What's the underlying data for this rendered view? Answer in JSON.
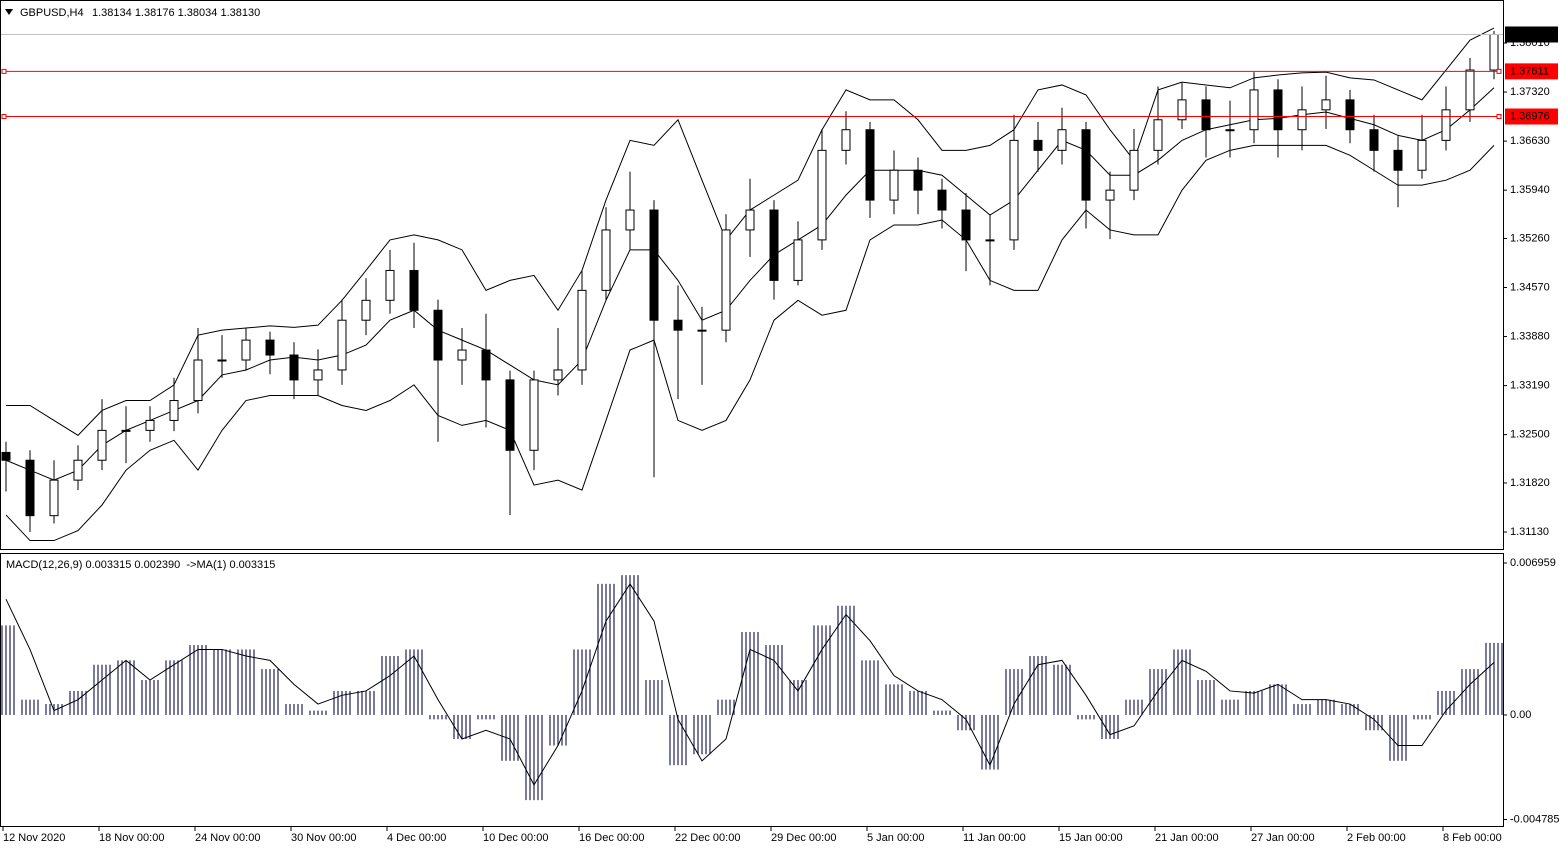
{
  "chart_data": [
    {
      "type": "candlestick",
      "title": "GBPUSD,H4",
      "subtitle": "1.38134 1.38176 1.38034 1.38130",
      "open": [
        1.3225,
        1.3214,
        1.3136,
        1.3186,
        1.3214,
        1.3256,
        1.3256,
        1.327,
        1.3298,
        1.3355,
        1.3355,
        1.3383,
        1.3362,
        1.3327,
        1.3341,
        1.3411,
        1.3439,
        1.3481,
        1.3425,
        1.3355,
        1.3369,
        1.3327,
        1.3228,
        1.3327,
        1.3341,
        1.3453,
        1.3538,
        1.3566,
        1.3411,
        1.3397,
        1.3397,
        1.3538,
        1.3566,
        1.3467,
        1.3524,
        1.365,
        1.3679,
        1.358,
        1.3622,
        1.3594,
        1.3566,
        1.3524,
        1.3524,
        1.3664,
        1.365,
        1.3679,
        1.358,
        1.3594,
        1.365,
        1.3693,
        1.3721,
        1.3679,
        1.3679,
        1.3735,
        1.3679,
        1.3707,
        1.3721,
        1.3679,
        1.365,
        1.3622,
        1.3664,
        1.3707,
        1.3763
      ],
      "high": [
        1.324,
        1.3228,
        1.3214,
        1.3235,
        1.33,
        1.329,
        1.329,
        1.333,
        1.34,
        1.339,
        1.34,
        1.3395,
        1.338,
        1.337,
        1.344,
        1.347,
        1.351,
        1.352,
        1.344,
        1.34,
        1.342,
        1.334,
        1.334,
        1.34,
        1.348,
        1.357,
        1.362,
        1.358,
        1.346,
        1.343,
        1.356,
        1.361,
        1.358,
        1.355,
        1.368,
        1.3705,
        1.369,
        1.365,
        1.364,
        1.361,
        1.359,
        1.356,
        1.37,
        1.369,
        1.371,
        1.369,
        1.362,
        1.368,
        1.374,
        1.3745,
        1.374,
        1.372,
        1.376,
        1.375,
        1.374,
        1.3755,
        1.3735,
        1.37,
        1.367,
        1.37,
        1.374,
        1.378,
        1.3818
      ],
      "low": [
        1.317,
        1.3113,
        1.3125,
        1.3172,
        1.32,
        1.321,
        1.324,
        1.3255,
        1.328,
        1.333,
        1.334,
        1.3335,
        1.33,
        1.3305,
        1.332,
        1.339,
        1.342,
        1.34,
        1.324,
        1.332,
        1.326,
        1.3137,
        1.32,
        1.3305,
        1.332,
        1.344,
        1.351,
        1.319,
        1.33,
        1.332,
        1.338,
        1.35,
        1.344,
        1.346,
        1.351,
        1.363,
        1.3555,
        1.356,
        1.356,
        1.354,
        1.348,
        1.346,
        1.351,
        1.362,
        1.363,
        1.354,
        1.3525,
        1.358,
        1.363,
        1.368,
        1.364,
        1.364,
        1.366,
        1.364,
        1.365,
        1.368,
        1.366,
        1.362,
        1.357,
        1.361,
        1.365,
        1.369,
        1.375
      ],
      "close": [
        1.3214,
        1.3136,
        1.3186,
        1.3214,
        1.3256,
        1.3256,
        1.327,
        1.3298,
        1.3355,
        1.3355,
        1.3383,
        1.3362,
        1.3327,
        1.3341,
        1.3411,
        1.3439,
        1.3481,
        1.3425,
        1.3355,
        1.3369,
        1.3327,
        1.3228,
        1.3327,
        1.3341,
        1.3453,
        1.3538,
        1.3566,
        1.3411,
        1.3397,
        1.3397,
        1.3538,
        1.3566,
        1.3467,
        1.3524,
        1.365,
        1.3679,
        1.358,
        1.3622,
        1.3594,
        1.3566,
        1.3524,
        1.3524,
        1.3664,
        1.365,
        1.3679,
        1.358,
        1.3594,
        1.365,
        1.3693,
        1.3721,
        1.3679,
        1.3679,
        1.3735,
        1.3679,
        1.3707,
        1.3721,
        1.3679,
        1.365,
        1.3622,
        1.3664,
        1.3707,
        1.3763,
        1.3813
      ],
      "upper": [
        1.3291,
        1.3291,
        1.327,
        1.3249,
        1.3284,
        1.3298,
        1.3298,
        1.332,
        1.339,
        1.3397,
        1.34,
        1.3403,
        1.3401,
        1.3404,
        1.3439,
        1.3481,
        1.3524,
        1.3531,
        1.3524,
        1.351,
        1.3453,
        1.3467,
        1.3474,
        1.3425,
        1.3481,
        1.358,
        1.3664,
        1.3657,
        1.3693,
        1.3608,
        1.3524,
        1.3566,
        1.3587,
        1.3608,
        1.3679,
        1.3735,
        1.3721,
        1.3721,
        1.3693,
        1.365,
        1.365,
        1.3657,
        1.3679,
        1.3735,
        1.3742,
        1.3728,
        1.3679,
        1.3636,
        1.3735,
        1.3746,
        1.3742,
        1.3738,
        1.3752,
        1.3756,
        1.3759,
        1.376,
        1.3752,
        1.3749,
        1.3735,
        1.3721,
        1.3763,
        1.3805,
        1.3822
      ],
      "middle": [
        1.3214,
        1.32,
        1.3186,
        1.32,
        1.3235,
        1.3256,
        1.327,
        1.3284,
        1.3298,
        1.3334,
        1.3341,
        1.3355,
        1.3359,
        1.3355,
        1.3362,
        1.3376,
        1.3411,
        1.3425,
        1.3397,
        1.3383,
        1.3369,
        1.3348,
        1.3327,
        1.332,
        1.3355,
        1.3439,
        1.351,
        1.351,
        1.3467,
        1.3411,
        1.3425,
        1.3467,
        1.3503,
        1.3524,
        1.3545,
        1.3587,
        1.3622,
        1.3622,
        1.3622,
        1.3615,
        1.3587,
        1.3559,
        1.358,
        1.3622,
        1.3664,
        1.365,
        1.3615,
        1.3615,
        1.3636,
        1.3664,
        1.3679,
        1.3686,
        1.3693,
        1.3695,
        1.37,
        1.3704,
        1.3695,
        1.3686,
        1.3671,
        1.3664,
        1.3679,
        1.3707,
        1.3738
      ],
      "lower": [
        1.3137,
        1.3101,
        1.3101,
        1.3115,
        1.3151,
        1.32,
        1.3228,
        1.3242,
        1.32,
        1.3256,
        1.3298,
        1.3305,
        1.3305,
        1.3305,
        1.3291,
        1.3284,
        1.3298,
        1.332,
        1.3277,
        1.3263,
        1.327,
        1.3256,
        1.3179,
        1.3186,
        1.3172,
        1.327,
        1.3369,
        1.3383,
        1.327,
        1.3256,
        1.327,
        1.3327,
        1.3411,
        1.3439,
        1.3418,
        1.3425,
        1.3524,
        1.3545,
        1.3545,
        1.3552,
        1.3524,
        1.3467,
        1.3453,
        1.3453,
        1.3524,
        1.3566,
        1.3538,
        1.3531,
        1.3531,
        1.3594,
        1.3636,
        1.365,
        1.3657,
        1.3657,
        1.3657,
        1.3657,
        1.3643,
        1.3622,
        1.3601,
        1.3601,
        1.3608,
        1.3622,
        1.3657
      ],
      "up_color": "#ffffff",
      "down_color": "#000000",
      "band_color": "#000000",
      "ylim": [
        1.30891,
        1.38573
      ],
      "yticks": [
        {
          "value": 1.3801,
          "label": "1.38010"
        },
        {
          "value": 1.3732,
          "label": "1.37320"
        },
        {
          "value": 1.3663,
          "label": "1.36630"
        },
        {
          "value": 1.3594,
          "label": "1.35940"
        },
        {
          "value": 1.3526,
          "label": "1.35260"
        },
        {
          "value": 1.3457,
          "label": "1.34570"
        },
        {
          "value": 1.3388,
          "label": "1.33880"
        },
        {
          "value": 1.3319,
          "label": "1.33190"
        },
        {
          "value": 1.325,
          "label": "1.32500"
        },
        {
          "value": 1.3182,
          "label": "1.31820"
        },
        {
          "value": 1.3113,
          "label": "1.31130"
        }
      ],
      "hlines": [
        {
          "value": 1.37611,
          "label": "1.37611",
          "color": "#ff0000"
        },
        {
          "value": 1.36976,
          "label": "1.36976",
          "color": "#ff0000"
        }
      ],
      "last_price": {
        "value": 1.3813,
        "label": "1.38130"
      }
    },
    {
      "type": "macd",
      "title": "MACD(12,26,9) 0.003315 0.002390  ->MA(1) 0.003315",
      "values": [
        0.0041,
        0.0007,
        0.0005,
        0.0011,
        0.0023,
        0.0025,
        0.0016,
        0.0025,
        0.0032,
        0.003,
        0.003,
        0.0021,
        0.0005,
        0.0002,
        0.0011,
        0.0011,
        0.0027,
        0.003,
        -0.0002,
        -0.0011,
        -0.0002,
        -0.0021,
        -0.0039,
        -0.0014,
        0.003,
        0.006,
        0.0064,
        0.0016,
        -0.0023,
        -0.0018,
        0.0007,
        0.0038,
        0.0032,
        0.0016,
        0.0041,
        0.005,
        0.0025,
        0.0014,
        0.0011,
        0.0002,
        -0.0007,
        -0.0025,
        0.0021,
        0.0027,
        0.0023,
        -0.0002,
        -0.0011,
        0.0007,
        0.0021,
        0.003,
        0.0016,
        0.0007,
        0.0011,
        0.0014,
        0.0005,
        0.0007,
        0.0005,
        -0.0007,
        -0.0021,
        -0.0002,
        0.0011,
        0.0021,
        0.0033
      ],
      "signal": [
        0.0053,
        0.003,
        0.0002,
        0.0007,
        0.0016,
        0.0025,
        0.0016,
        0.0023,
        0.003,
        0.003,
        0.0027,
        0.0025,
        0.0014,
        0.0005,
        0.0009,
        0.0011,
        0.0018,
        0.0027,
        0.0007,
        -0.0011,
        -0.0007,
        -0.0011,
        -0.0032,
        -0.0014,
        0.0011,
        0.0043,
        0.006,
        0.0043,
        -0.0002,
        -0.0021,
        -0.0011,
        0.003,
        0.0025,
        0.0011,
        0.003,
        0.0046,
        0.0034,
        0.0018,
        0.0011,
        0.0007,
        -0.0002,
        -0.0023,
        0.0005,
        0.0023,
        0.0025,
        0.0009,
        -0.0009,
        -0.0005,
        0.0011,
        0.0025,
        0.002,
        0.0011,
        0.001,
        0.0014,
        0.0007,
        0.0007,
        0.0005,
        -0.0002,
        -0.0014,
        -0.0014,
        0.0002,
        0.0014,
        0.0024
      ],
      "color": "#20205a",
      "signal_color": "#000000",
      "ylim": [
        -0.00513,
        0.00737
      ],
      "yticks": [
        0.006959,
        {
          "value": 0,
          "label": "0.00"
        },
        -0.004785
      ],
      "xticks": [
        {
          "value": 0,
          "label": "12 Nov 2020"
        },
        {
          "value": 4,
          "label": "18 Nov 00:00"
        },
        {
          "value": 8,
          "label": "24 Nov 00:00"
        },
        {
          "value": 12,
          "label": "30 Nov 00:00"
        },
        {
          "value": 16,
          "label": "4 Dec 00:00"
        },
        {
          "value": 20,
          "label": "10 Dec 00:00"
        },
        {
          "value": 24,
          "label": "16 Dec 00:00"
        },
        {
          "value": 28,
          "label": "22 Dec 00:00"
        },
        {
          "value": 32,
          "label": "29 Dec 00:00"
        },
        {
          "value": 36,
          "label": "5 Jan 00:00"
        },
        {
          "value": 40,
          "label": "11 Jan 00:00"
        },
        {
          "value": 44,
          "label": "15 Jan 00:00"
        },
        {
          "value": 48,
          "label": "21 Jan 00:00"
        },
        {
          "value": 52,
          "label": "27 Jan 00:00"
        },
        {
          "value": 56,
          "label": "2 Feb 00:00"
        },
        {
          "value": 60,
          "label": "8 Feb 00:00"
        }
      ]
    }
  ]
}
